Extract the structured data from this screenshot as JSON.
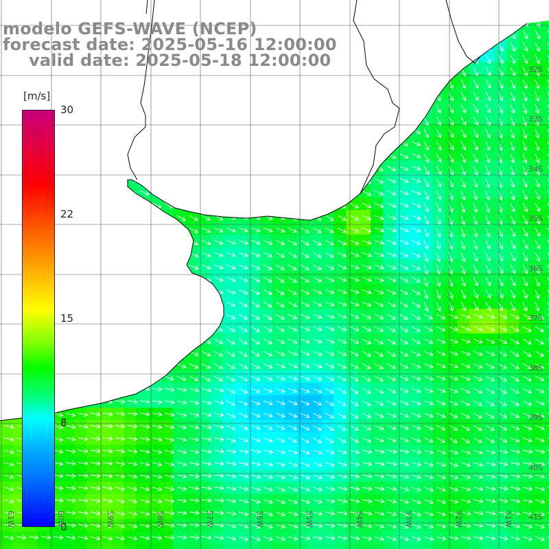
{
  "title": {
    "line1": "modelo GEFS-WAVE (NCEP)",
    "line2": "forecast date: 2025-05-16 12:00:00",
    "line3": "valid date: 2025-05-18 12:00:00"
  },
  "colorbar": {
    "unit": "[m/s]",
    "ticks": [
      "30",
      "22",
      "15",
      "8",
      "0"
    ],
    "colors": [
      "#c8007a",
      "#ff0000",
      "#ff9800",
      "#ffff00",
      "#00ff00",
      "#00ffff",
      "#0064ff",
      "#0000ff"
    ]
  },
  "longitude_labels": [
    "61W",
    "60W",
    "59W",
    "58W",
    "57W",
    "56W",
    "55W",
    "54W",
    "53W",
    "52W",
    "51W"
  ],
  "latitude_labels": [
    "32S",
    "33S",
    "34S",
    "35S",
    "36S",
    "37S",
    "38S",
    "39S",
    "40S",
    "41S"
  ],
  "colors": {
    "land": "#ffffff",
    "coastline": "#000000",
    "grid": "#555555",
    "arrows": "#ffffff",
    "title_text": "#8a8a8a"
  }
}
